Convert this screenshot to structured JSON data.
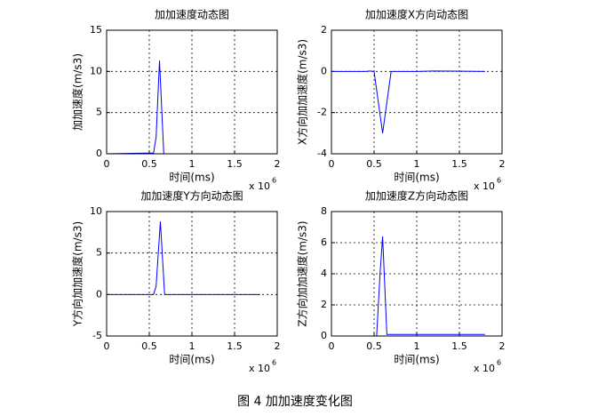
{
  "chart_data": [
    {
      "type": "line",
      "title": "加加速度动态图",
      "xlabel": "时间(ms)",
      "ylabel": "加加速度(m/s3)",
      "x_offset_text": "x 10",
      "x_offset_exponent": 6,
      "x": [
        0,
        0.55,
        0.58,
        0.62,
        0.67,
        0.7,
        1.8
      ],
      "values": [
        0,
        0.1,
        2,
        11.3,
        0,
        0,
        0
      ],
      "color": "#0000ff",
      "xlim": [
        0,
        2
      ],
      "xticks": [
        0,
        0.5,
        1,
        1.5,
        2
      ],
      "ylim": [
        0,
        15
      ],
      "yticks": [
        0,
        5,
        10,
        15
      ],
      "grid": true
    },
    {
      "type": "line",
      "title": "加加速度X方向动态图",
      "xlabel": "时间(ms)",
      "ylabel": "X方向加加速度(m/s3)",
      "x_offset_text": "x 10",
      "x_offset_exponent": 6,
      "x": [
        0,
        0.4,
        0.45,
        0.5,
        0.55,
        0.6,
        0.65,
        0.7,
        1.0,
        1.2,
        1.8
      ],
      "values": [
        0,
        0,
        0.02,
        0,
        -1.5,
        -3,
        -1.5,
        0,
        0,
        0.02,
        0
      ],
      "color": "#0000ff",
      "xlim": [
        0,
        2
      ],
      "xticks": [
        0,
        0.5,
        1,
        1.5,
        2
      ],
      "ylim": [
        -4,
        2
      ],
      "yticks": [
        -4,
        -2,
        0,
        2
      ],
      "grid": true
    },
    {
      "type": "line",
      "title": "加加速度Y方向动态图",
      "xlabel": "时间(ms)",
      "ylabel": "Y方向加加速度(m/s3)",
      "x_offset_text": "x 10",
      "x_offset_exponent": 6,
      "x": [
        0,
        0.55,
        0.58,
        0.63,
        0.68,
        1.8
      ],
      "values": [
        0,
        0,
        1,
        8.8,
        0,
        0
      ],
      "color": "#0000ff",
      "xlim": [
        0,
        2
      ],
      "xticks": [
        0,
        0.5,
        1,
        1.5,
        2
      ],
      "ylim": [
        -5,
        10
      ],
      "yticks": [
        -5,
        0,
        5,
        10
      ],
      "grid": true
    },
    {
      "type": "line",
      "title": "加加速度Z方向动态图",
      "xlabel": "时间(ms)",
      "ylabel": "Z方向加加速度(m/s3)",
      "x_offset_text": "x 10",
      "x_offset_exponent": 6,
      "x": [
        0,
        0.53,
        0.57,
        0.6,
        0.65,
        1.8
      ],
      "values": [
        0,
        0,
        4,
        6.4,
        0.1,
        0.1
      ],
      "color": "#0000ff",
      "xlim": [
        0,
        2
      ],
      "xticks": [
        0,
        0.5,
        1,
        1.5,
        2
      ],
      "ylim": [
        0,
        8
      ],
      "yticks": [
        0,
        2,
        4,
        6,
        8
      ],
      "grid": true
    }
  ],
  "caption": "图 4  加加速度变化图"
}
